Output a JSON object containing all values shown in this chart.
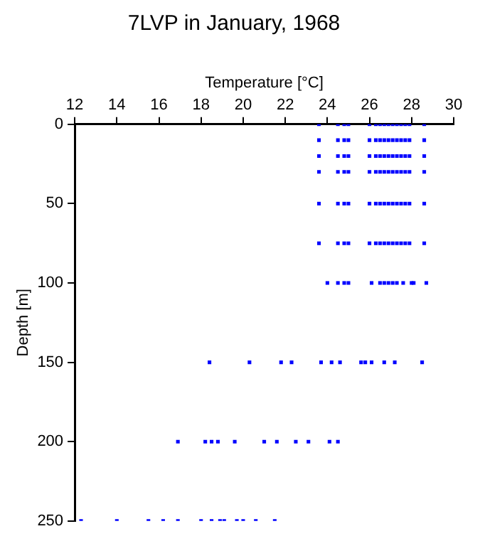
{
  "chart_data": {
    "type": "scatter",
    "title": "7LVP in January, 1968",
    "xlabel": "Temperature [°C]",
    "ylabel": "Depth [m]",
    "xlim": [
      12,
      30
    ],
    "xticks": [
      12,
      14,
      16,
      18,
      20,
      22,
      24,
      26,
      28,
      30
    ],
    "ylim": [
      250,
      0
    ],
    "yticks": [
      0,
      50,
      100,
      150,
      200,
      250
    ],
    "grid": false,
    "legend": false,
    "marker": "square",
    "series": [
      {
        "color": "#0000ff",
        "x": [
          23.6,
          24.5,
          24.8,
          25.0,
          26.0,
          26.3,
          26.5,
          26.7,
          26.9,
          27.1,
          27.3,
          27.5,
          27.7,
          27.9,
          28.6,
          23.6,
          24.5,
          24.8,
          25.0,
          26.0,
          26.3,
          26.5,
          26.7,
          26.9,
          27.1,
          27.3,
          27.5,
          27.7,
          27.9,
          28.6,
          23.6,
          24.5,
          24.8,
          25.0,
          26.0,
          26.3,
          26.5,
          26.7,
          26.9,
          27.1,
          27.3,
          27.5,
          27.7,
          27.9,
          28.6,
          23.6,
          24.5,
          24.8,
          25.0,
          26.0,
          26.3,
          26.5,
          26.7,
          26.9,
          27.1,
          27.3,
          27.5,
          27.7,
          27.9,
          28.6,
          23.6,
          24.5,
          24.8,
          25.0,
          26.0,
          26.3,
          26.5,
          26.7,
          26.9,
          27.1,
          27.3,
          27.5,
          27.7,
          27.9,
          28.6,
          23.6,
          24.5,
          24.8,
          25.0,
          26.0,
          26.3,
          26.5,
          26.7,
          26.9,
          27.1,
          27.3,
          27.5,
          27.7,
          27.9,
          28.6,
          24.0,
          24.5,
          24.8,
          25.0,
          26.1,
          26.5,
          26.7,
          26.9,
          27.1,
          27.3,
          27.6,
          28.0,
          28.1,
          28.7,
          18.4,
          20.3,
          21.8,
          22.3,
          23.7,
          24.2,
          24.6,
          25.6,
          25.8,
          26.1,
          26.7,
          27.2,
          28.5,
          16.9,
          18.2,
          18.5,
          18.8,
          19.6,
          21.0,
          21.6,
          22.5,
          23.1,
          24.1,
          24.5,
          12.3,
          14.0,
          15.5,
          16.2,
          16.9,
          18.0,
          18.5,
          18.9,
          19.1,
          19.7,
          20.0,
          20.6,
          21.5
        ],
        "values": [
          0,
          0,
          0,
          0,
          0,
          0,
          0,
          0,
          0,
          0,
          0,
          0,
          0,
          0,
          0,
          10,
          10,
          10,
          10,
          10,
          10,
          10,
          10,
          10,
          10,
          10,
          10,
          10,
          10,
          10,
          20,
          20,
          20,
          20,
          20,
          20,
          20,
          20,
          20,
          20,
          20,
          20,
          20,
          20,
          20,
          30,
          30,
          30,
          30,
          30,
          30,
          30,
          30,
          30,
          30,
          30,
          30,
          30,
          30,
          30,
          50,
          50,
          50,
          50,
          50,
          50,
          50,
          50,
          50,
          50,
          50,
          50,
          50,
          50,
          50,
          75,
          75,
          75,
          75,
          75,
          75,
          75,
          75,
          75,
          75,
          75,
          75,
          75,
          75,
          75,
          100,
          100,
          100,
          100,
          100,
          100,
          100,
          100,
          100,
          100,
          100,
          100,
          100,
          100,
          150,
          150,
          150,
          150,
          150,
          150,
          150,
          150,
          150,
          150,
          150,
          150,
          150,
          200,
          200,
          200,
          200,
          200,
          200,
          200,
          200,
          200,
          200,
          200,
          250,
          250,
          250,
          250,
          250,
          250,
          250,
          250,
          250,
          250,
          250,
          250,
          250
        ]
      }
    ]
  }
}
